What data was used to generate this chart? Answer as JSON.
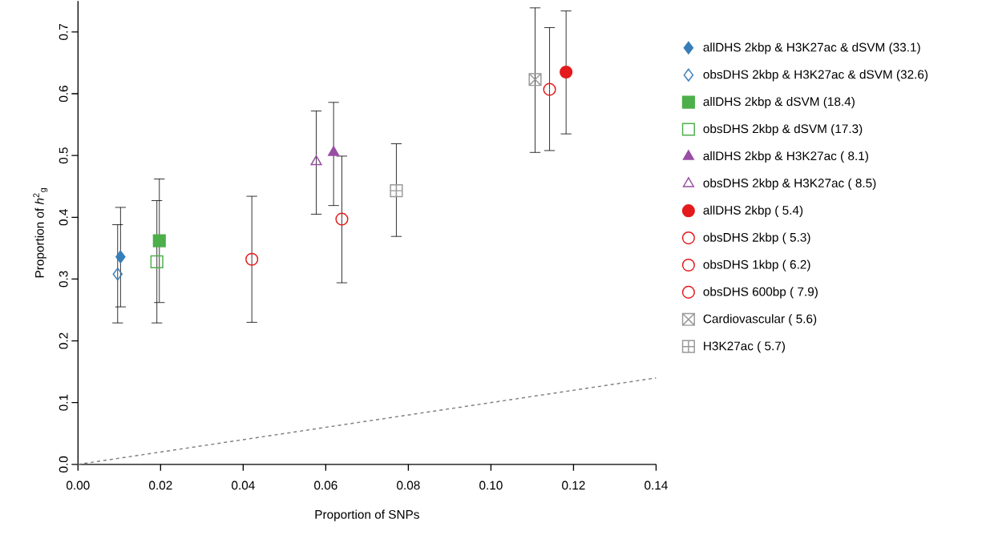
{
  "chart_data": {
    "type": "scatter",
    "xlabel": "Proportion of SNPs",
    "ylabel": "Proportion of *h*$^{2}$$_{g}$",
    "xlim": [
      0,
      0.14
    ],
    "ylim": [
      0,
      0.75
    ],
    "xticks": [
      {
        "value": 0,
        "label": "0.00"
      },
      {
        "value": 0.02,
        "label": "0.02"
      },
      {
        "value": 0.04,
        "label": "0.04"
      },
      {
        "value": 0.06,
        "label": "0.06"
      },
      {
        "value": 0.08,
        "label": "0.08"
      },
      {
        "value": 0.1,
        "label": "0.10"
      },
      {
        "value": 0.12,
        "label": "0.12"
      },
      {
        "value": 0.14,
        "label": "0.14"
      }
    ],
    "yticks": [
      {
        "value": 0,
        "label": "0.0"
      },
      0.1,
      0.2,
      0.3,
      0.4,
      0.5,
      0.6,
      0.7
    ],
    "legend": "right",
    "series": [
      {
        "name": "allDHS 2kbp & H3K27ac & dSVM (33.1)",
        "color": "#377eb8",
        "marker": "diamond",
        "x": [
          0.0103
        ],
        "values": [
          0.336
        ],
        "errors": [
          [
            0.255,
            0.416
          ]
        ]
      },
      {
        "name": "obsDHS 2kbp & H3K27ac & dSVM (32.6)",
        "color": "#377eb8",
        "marker": "diamond-open",
        "x": [
          0.0096
        ],
        "values": [
          0.308
        ],
        "errors": [
          [
            0.229,
            0.388
          ]
        ]
      },
      {
        "name": "allDHS 2kbp & dSVM (18.4)",
        "color": "#4daf4a",
        "marker": "square",
        "x": [
          0.0197
        ],
        "values": [
          0.362
        ],
        "errors": [
          [
            0.262,
            0.462
          ]
        ]
      },
      {
        "name": "obsDHS 2kbp & dSVM (17.3)",
        "color": "#4daf4a",
        "marker": "square-open",
        "x": [
          0.0191
        ],
        "values": [
          0.328
        ],
        "errors": [
          [
            0.229,
            0.427
          ]
        ]
      },
      {
        "name": "allDHS 2kbp & H3K27ac ( 8.1)",
        "color": "#984ea3",
        "marker": "triangle",
        "x": [
          0.0619
        ],
        "values": [
          0.505
        ],
        "errors": [
          [
            0.419,
            0.586
          ]
        ]
      },
      {
        "name": "obsDHS 2kbp & H3K27ac ( 8.5)",
        "color": "#984ea3",
        "marker": "triangle-open",
        "x": [
          0.0577
        ],
        "values": [
          0.49
        ],
        "errors": [
          [
            0.405,
            0.572
          ]
        ]
      },
      {
        "name": "allDHS 2kbp ( 5.4)",
        "color": "#e41a1c",
        "marker": "circle",
        "x": [
          0.1182
        ],
        "values": [
          0.635
        ],
        "errors": [
          [
            0.535,
            0.734
          ]
        ]
      },
      {
        "name": "obsDHS 2kbp ( 5.3)",
        "color": "#e41a1c",
        "marker": "circle-open",
        "x": [
          0.1142
        ],
        "values": [
          0.607
        ],
        "errors": [
          [
            0.508,
            0.707
          ]
        ]
      },
      {
        "name": "obsDHS 1kbp ( 6.2)",
        "color": "#e41a1c",
        "marker": "circle-open",
        "x": [
          0.0639
        ],
        "values": [
          0.397
        ],
        "errors": [
          [
            0.294,
            0.499
          ]
        ]
      },
      {
        "name": "obsDHS 600bp ( 7.9)",
        "color": "#e41a1c",
        "marker": "circle-open",
        "x": [
          0.0421
        ],
        "values": [
          0.332
        ],
        "errors": [
          [
            0.23,
            0.434
          ]
        ]
      },
      {
        "name": "Cardiovascular ( 5.6)",
        "color": "#999999",
        "marker": "cross",
        "x": [
          0.1107
        ],
        "values": [
          0.623
        ],
        "errors": [
          [
            0.505,
            0.739
          ]
        ]
      },
      {
        "name": "H3K27ac ( 5.7)",
        "color": "#999999",
        "marker": "cross-plus",
        "x": [
          0.0771
        ],
        "values": [
          0.443
        ],
        "errors": [
          [
            0.369,
            0.519
          ]
        ]
      },
      {
        "type": "line",
        "color": "#808080",
        "line_style": "dashed",
        "marker": "none",
        "x": [
          0,
          0.14
        ],
        "values": [
          0,
          0.14
        ]
      }
    ]
  }
}
